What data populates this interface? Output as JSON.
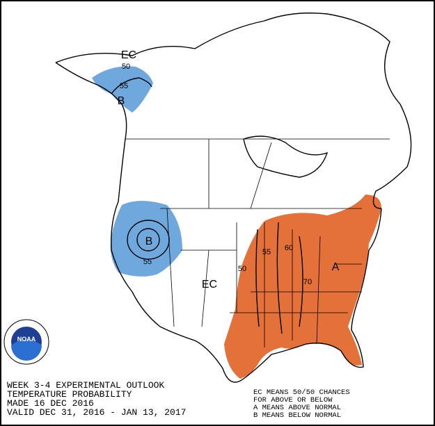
{
  "map": {
    "labels": [
      "EC",
      "50",
      "55",
      "B",
      "B",
      "55",
      "EC",
      "50",
      "55",
      "60",
      "70",
      "A"
    ],
    "logo": "NOAA",
    "info": [
      "WEEK 3-4 EXPERIMENTAL OUTLOOK",
      "TEMPERATURE PROBABILITY",
      "MADE  16 DEC 2016",
      "VALID  DEC 31, 2016 - JAN 13, 2017"
    ],
    "legend": [
      "EC MEANS 50/50 CHANCES",
      "FOR ABOVE OR BELOW",
      "A MEANS ABOVE NORMAL",
      "B MEANS BELOW NORMAL"
    ]
  }
}
